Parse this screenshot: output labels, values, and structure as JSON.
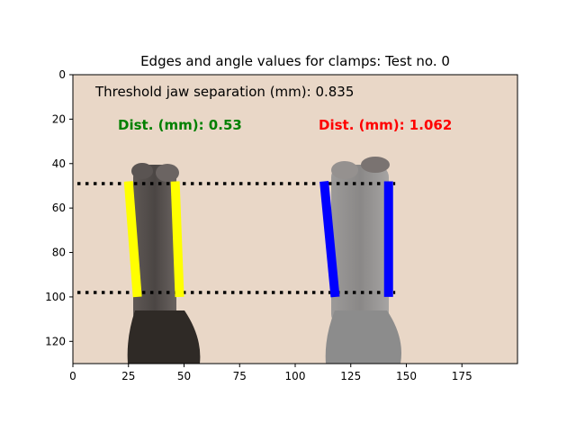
{
  "title": "Edges and angle values for clamps: Test no. 0",
  "threshold_text": "Threshold jaw separation (mm): 0.835",
  "left_dist_text": "Dist. (mm): 0.53",
  "right_dist_text": "Dist. (mm): 1.062",
  "colors": {
    "left_edges": "#ffff00",
    "right_edges": "#0000ff",
    "left_dist": "#008000",
    "right_dist": "#ff0000",
    "hlines": "#000000",
    "background": "#ecdacb"
  },
  "axes": {
    "x_ticks": [
      "0",
      "25",
      "50",
      "75",
      "100",
      "125",
      "150",
      "175"
    ],
    "y_ticks": [
      "0",
      "20",
      "40",
      "60",
      "80",
      "100",
      "120"
    ],
    "xlim": [
      0,
      200
    ],
    "ylim": [
      130,
      0
    ]
  },
  "overlay_data": {
    "horizontal_lines_y": [
      49,
      98
    ],
    "left_edges": [
      {
        "x1": 25,
        "y1": 48,
        "x2": 29,
        "y2": 100
      },
      {
        "x1": 46,
        "y1": 48,
        "x2": 48,
        "y2": 100
      }
    ],
    "right_edges": [
      {
        "x1": 113,
        "y1": 48,
        "x2": 118,
        "y2": 100
      },
      {
        "x1": 142,
        "y1": 48,
        "x2": 142,
        "y2": 100
      }
    ]
  }
}
